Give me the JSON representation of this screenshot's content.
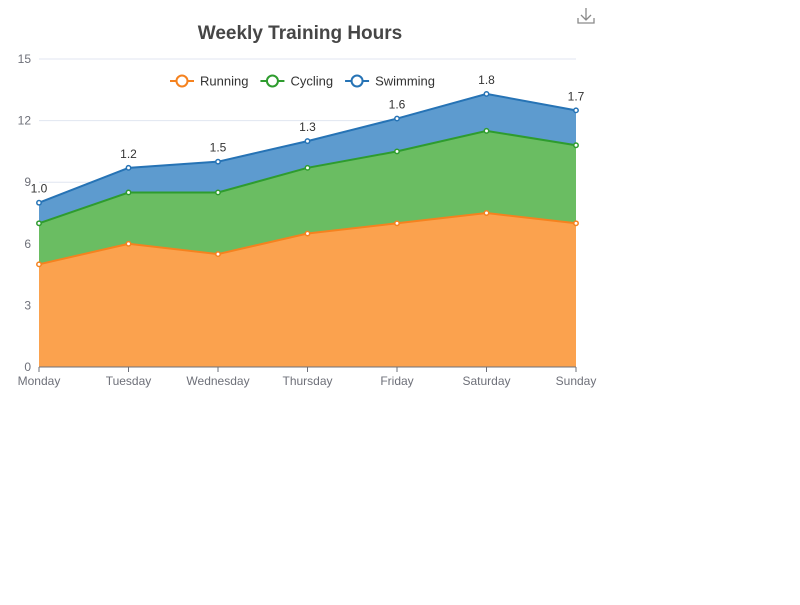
{
  "toolbox": {
    "download_icon": "download-icon"
  },
  "chart_data": {
    "type": "area",
    "stacked": true,
    "title": "Weekly Training Hours",
    "categories": [
      "Monday",
      "Tuesday",
      "Wednesday",
      "Thursday",
      "Friday",
      "Saturday",
      "Sunday"
    ],
    "ylim": [
      0,
      15
    ],
    "yticks": [
      0,
      3,
      6,
      9,
      12,
      15
    ],
    "grid": true,
    "legend_position": "top-center",
    "series": [
      {
        "name": "Running",
        "color": "#f5821f",
        "fill": "#fba24e",
        "values": [
          5.0,
          6.0,
          5.5,
          6.5,
          7.0,
          7.5,
          7.0
        ]
      },
      {
        "name": "Cycling",
        "color": "#2e9c2e",
        "fill": "#6abd62",
        "values": [
          2.0,
          2.5,
          3.0,
          3.2,
          3.5,
          4.0,
          3.8
        ]
      },
      {
        "name": "Swimming",
        "color": "#2673b5",
        "fill": "#5d9bcf",
        "values": [
          1.0,
          1.2,
          1.5,
          1.3,
          1.6,
          1.8,
          1.7
        ]
      }
    ],
    "data_labels": {
      "series": "Swimming",
      "values": [
        "1.0",
        "1.2",
        "1.5",
        "1.3",
        "1.6",
        "1.8",
        "1.7"
      ]
    }
  }
}
